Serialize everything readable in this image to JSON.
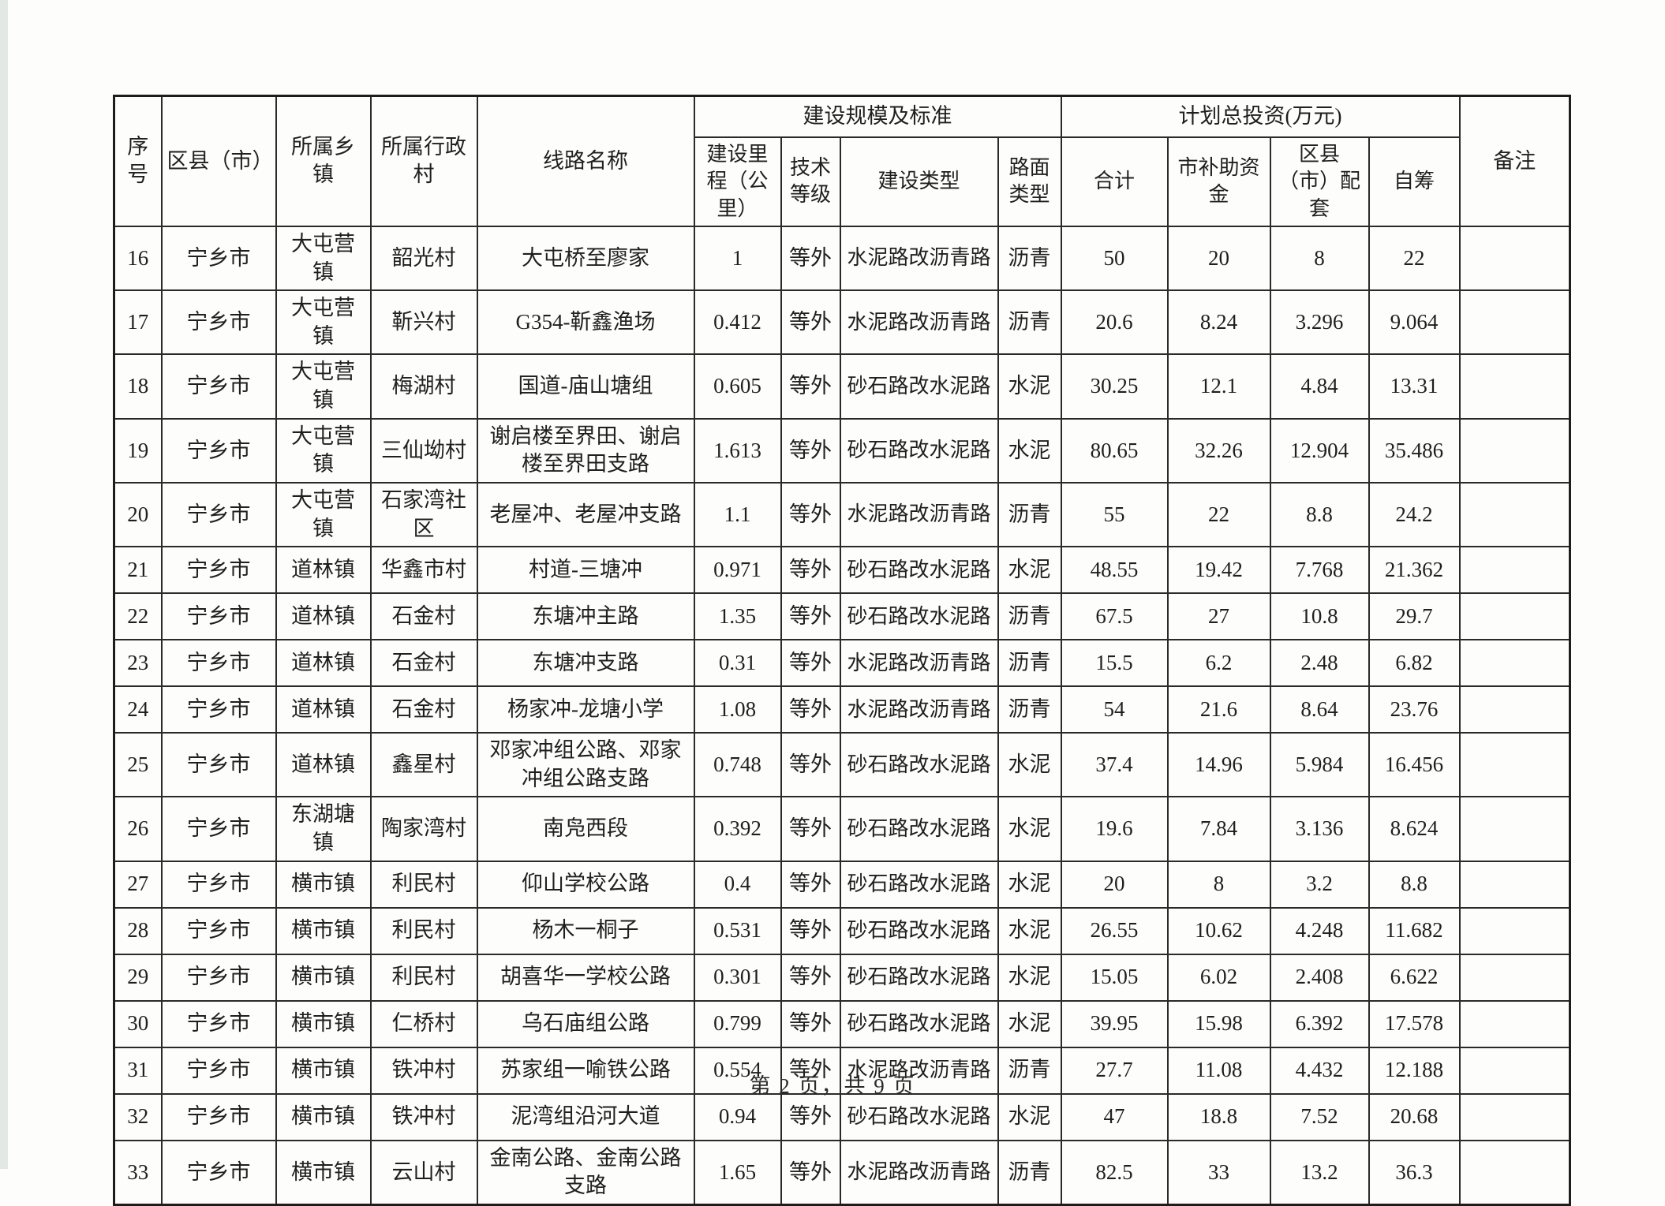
{
  "page": {
    "footer": "第 2 页，共 9 页"
  },
  "table": {
    "headers": {
      "no": "序号",
      "county": "区县（市）",
      "town": "所属乡镇",
      "village": "所属行政村",
      "route": "线路名称",
      "group_scale": "建设规模及标准",
      "mileage": "建设里程（公里）",
      "grade": "技术等级",
      "type": "建设类型",
      "surface": "路面类型",
      "group_invest": "计划总投资(万元)",
      "total": "合计",
      "city_fund": "市补助资金",
      "district_fund": "区县（市）配套",
      "self_fund": "自筹",
      "note": "备注"
    },
    "keys": [
      "no",
      "county",
      "town",
      "village",
      "route",
      "mileage",
      "grade",
      "type",
      "surface",
      "total",
      "city_fund",
      "district_fund",
      "self_fund",
      "note"
    ],
    "rows": [
      {
        "no": "16",
        "county": "宁乡市",
        "town": "大屯营镇",
        "village": "韶光村",
        "route": "大屯桥至廖家",
        "mileage": "1",
        "grade": "等外",
        "type": "水泥路改沥青路",
        "surface": "沥青",
        "total": "50",
        "city_fund": "20",
        "district_fund": "8",
        "self_fund": "22",
        "note": ""
      },
      {
        "no": "17",
        "county": "宁乡市",
        "town": "大屯营镇",
        "village": "靳兴村",
        "route": "G354-靳鑫渔场",
        "mileage": "0.412",
        "grade": "等外",
        "type": "水泥路改沥青路",
        "surface": "沥青",
        "total": "20.6",
        "city_fund": "8.24",
        "district_fund": "3.296",
        "self_fund": "9.064",
        "note": ""
      },
      {
        "no": "18",
        "county": "宁乡市",
        "town": "大屯营镇",
        "village": "梅湖村",
        "route": "国道-庙山塘组",
        "mileage": "0.605",
        "grade": "等外",
        "type": "砂石路改水泥路",
        "surface": "水泥",
        "total": "30.25",
        "city_fund": "12.1",
        "district_fund": "4.84",
        "self_fund": "13.31",
        "note": ""
      },
      {
        "no": "19",
        "county": "宁乡市",
        "town": "大屯营镇",
        "village": "三仙坳村",
        "route": "谢启楼至界田、谢启楼至界田支路",
        "mileage": "1.613",
        "grade": "等外",
        "type": "砂石路改水泥路",
        "surface": "水泥",
        "total": "80.65",
        "city_fund": "32.26",
        "district_fund": "12.904",
        "self_fund": "35.486",
        "note": ""
      },
      {
        "no": "20",
        "county": "宁乡市",
        "town": "大屯营镇",
        "village": "石家湾社区",
        "route": "老屋冲、老屋冲支路",
        "mileage": "1.1",
        "grade": "等外",
        "type": "水泥路改沥青路",
        "surface": "沥青",
        "total": "55",
        "city_fund": "22",
        "district_fund": "8.8",
        "self_fund": "24.2",
        "note": ""
      },
      {
        "no": "21",
        "county": "宁乡市",
        "town": "道林镇",
        "village": "华鑫市村",
        "route": "村道-三塘冲",
        "mileage": "0.971",
        "grade": "等外",
        "type": "砂石路改水泥路",
        "surface": "水泥",
        "total": "48.55",
        "city_fund": "19.42",
        "district_fund": "7.768",
        "self_fund": "21.362",
        "note": ""
      },
      {
        "no": "22",
        "county": "宁乡市",
        "town": "道林镇",
        "village": "石金村",
        "route": "东塘冲主路",
        "mileage": "1.35",
        "grade": "等外",
        "type": "砂石路改水泥路",
        "surface": "沥青",
        "total": "67.5",
        "city_fund": "27",
        "district_fund": "10.8",
        "self_fund": "29.7",
        "note": ""
      },
      {
        "no": "23",
        "county": "宁乡市",
        "town": "道林镇",
        "village": "石金村",
        "route": "东塘冲支路",
        "mileage": "0.31",
        "grade": "等外",
        "type": "水泥路改沥青路",
        "surface": "沥青",
        "total": "15.5",
        "city_fund": "6.2",
        "district_fund": "2.48",
        "self_fund": "6.82",
        "note": ""
      },
      {
        "no": "24",
        "county": "宁乡市",
        "town": "道林镇",
        "village": "石金村",
        "route": "杨家冲-龙塘小学",
        "mileage": "1.08",
        "grade": "等外",
        "type": "水泥路改沥青路",
        "surface": "沥青",
        "total": "54",
        "city_fund": "21.6",
        "district_fund": "8.64",
        "self_fund": "23.76",
        "note": ""
      },
      {
        "no": "25",
        "county": "宁乡市",
        "town": "道林镇",
        "village": "鑫星村",
        "route": "邓家冲组公路、邓家冲组公路支路",
        "mileage": "0.748",
        "grade": "等外",
        "type": "砂石路改水泥路",
        "surface": "水泥",
        "total": "37.4",
        "city_fund": "14.96",
        "district_fund": "5.984",
        "self_fund": "16.456",
        "note": ""
      },
      {
        "no": "26",
        "county": "宁乡市",
        "town": "东湖塘镇",
        "village": "陶家湾村",
        "route": "南凫西段",
        "mileage": "0.392",
        "grade": "等外",
        "type": "砂石路改水泥路",
        "surface": "水泥",
        "total": "19.6",
        "city_fund": "7.84",
        "district_fund": "3.136",
        "self_fund": "8.624",
        "note": ""
      },
      {
        "no": "27",
        "county": "宁乡市",
        "town": "横市镇",
        "village": "利民村",
        "route": "仰山学校公路",
        "mileage": "0.4",
        "grade": "等外",
        "type": "砂石路改水泥路",
        "surface": "水泥",
        "total": "20",
        "city_fund": "8",
        "district_fund": "3.2",
        "self_fund": "8.8",
        "note": ""
      },
      {
        "no": "28",
        "county": "宁乡市",
        "town": "横市镇",
        "village": "利民村",
        "route": "杨木一桐子",
        "mileage": "0.531",
        "grade": "等外",
        "type": "砂石路改水泥路",
        "surface": "水泥",
        "total": "26.55",
        "city_fund": "10.62",
        "district_fund": "4.248",
        "self_fund": "11.682",
        "note": ""
      },
      {
        "no": "29",
        "county": "宁乡市",
        "town": "横市镇",
        "village": "利民村",
        "route": "胡喜华一学校公路",
        "mileage": "0.301",
        "grade": "等外",
        "type": "砂石路改水泥路",
        "surface": "水泥",
        "total": "15.05",
        "city_fund": "6.02",
        "district_fund": "2.408",
        "self_fund": "6.622",
        "note": ""
      },
      {
        "no": "30",
        "county": "宁乡市",
        "town": "横市镇",
        "village": "仁桥村",
        "route": "乌石庙组公路",
        "mileage": "0.799",
        "grade": "等外",
        "type": "砂石路改水泥路",
        "surface": "水泥",
        "total": "39.95",
        "city_fund": "15.98",
        "district_fund": "6.392",
        "self_fund": "17.578",
        "note": ""
      },
      {
        "no": "31",
        "county": "宁乡市",
        "town": "横市镇",
        "village": "铁冲村",
        "route": "苏家组一喻铁公路",
        "mileage": "0.554",
        "grade": "等外",
        "type": "水泥路改沥青路",
        "surface": "沥青",
        "total": "27.7",
        "city_fund": "11.08",
        "district_fund": "4.432",
        "self_fund": "12.188",
        "note": ""
      },
      {
        "no": "32",
        "county": "宁乡市",
        "town": "横市镇",
        "village": "铁冲村",
        "route": "泥湾组沿河大道",
        "mileage": "0.94",
        "grade": "等外",
        "type": "砂石路改水泥路",
        "surface": "水泥",
        "total": "47",
        "city_fund": "18.8",
        "district_fund": "7.52",
        "self_fund": "20.68",
        "note": ""
      },
      {
        "no": "33",
        "county": "宁乡市",
        "town": "横市镇",
        "village": "云山村",
        "route": "金南公路、金南公路支路",
        "mileage": "1.65",
        "grade": "等外",
        "type": "水泥路改沥青路",
        "surface": "沥青",
        "total": "82.5",
        "city_fund": "33",
        "district_fund": "13.2",
        "self_fund": "36.3",
        "note": ""
      }
    ]
  }
}
